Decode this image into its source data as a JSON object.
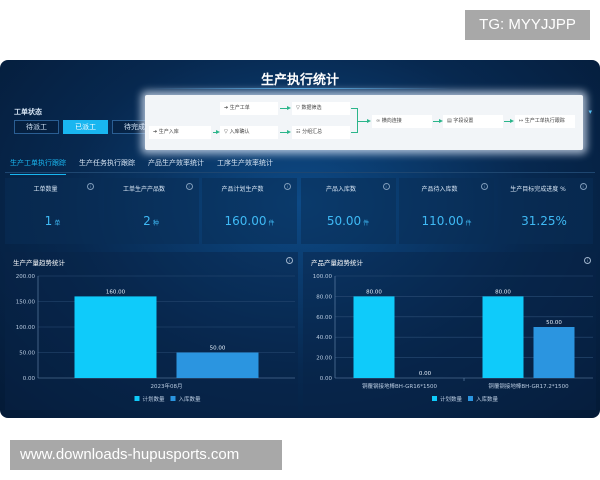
{
  "watermarks": {
    "top": "TG: MYYJJPP",
    "bottom": "www.downloads-hupusports.com"
  },
  "title": "生产执行统计",
  "status": {
    "label": "工单状态",
    "buttons": [
      {
        "label": "待派工",
        "active": false
      },
      {
        "label": "已派工",
        "active": true
      },
      {
        "label": "待完成",
        "active": false
      }
    ]
  },
  "flow": {
    "nodes": [
      "生产工单",
      "数据筛选",
      "生产入库",
      "入库确认",
      "分组汇总",
      "横向连接",
      "字段设置",
      "生产工单执行跟踪"
    ]
  },
  "tabs": [
    {
      "label": "生产工单执行跟踪",
      "active": true
    },
    {
      "label": "生产任务执行跟踪"
    },
    {
      "label": "产品生产效率统计"
    },
    {
      "label": "工序生产效率统计"
    }
  ],
  "kpis": [
    {
      "label": "工单数量",
      "value": "1",
      "unit": "单"
    },
    {
      "label": "工单生产产品数",
      "value": "2",
      "unit": "种"
    },
    {
      "label": "产品计划生产数",
      "value": "160.00",
      "unit": "件"
    },
    {
      "label": "产品入库数",
      "value": "50.00",
      "unit": "件"
    },
    {
      "label": "产品待入库数",
      "value": "110.00",
      "unit": "件"
    },
    {
      "label": "生产目标完成进度 %",
      "value": "31.25%",
      "unit": ""
    }
  ],
  "colors": {
    "plan": "#0fcbfa",
    "stored": "#2b95e0",
    "accent": "#19b6f0"
  },
  "chart_data": [
    {
      "type": "bar",
      "title": "生产产量趋势统计",
      "categories": [
        "2023年08月"
      ],
      "series": [
        {
          "name": "计划数量",
          "values": [
            160
          ]
        },
        {
          "name": "入库数量",
          "values": [
            50
          ]
        }
      ],
      "ylim": [
        0,
        200
      ],
      "yticks": [
        "0.00",
        "50.00",
        "100.00",
        "150.00",
        "200.00"
      ],
      "grid": true,
      "legend": "bottom"
    },
    {
      "type": "bar",
      "title": "产品产量趋势统计",
      "categories": [
        "铜覆钢接地棒BH-GR16*1500",
        "铜覆钢接地棒BH-GR17.2*1500"
      ],
      "series": [
        {
          "name": "计划数量",
          "values": [
            80,
            80
          ]
        },
        {
          "name": "入库数量",
          "values": [
            0,
            50
          ]
        }
      ],
      "ylim": [
        0,
        100
      ],
      "yticks": [
        "0.00",
        "20.00",
        "40.00",
        "60.00",
        "80.00",
        "100.00"
      ],
      "grid": true,
      "legend": "bottom"
    }
  ]
}
